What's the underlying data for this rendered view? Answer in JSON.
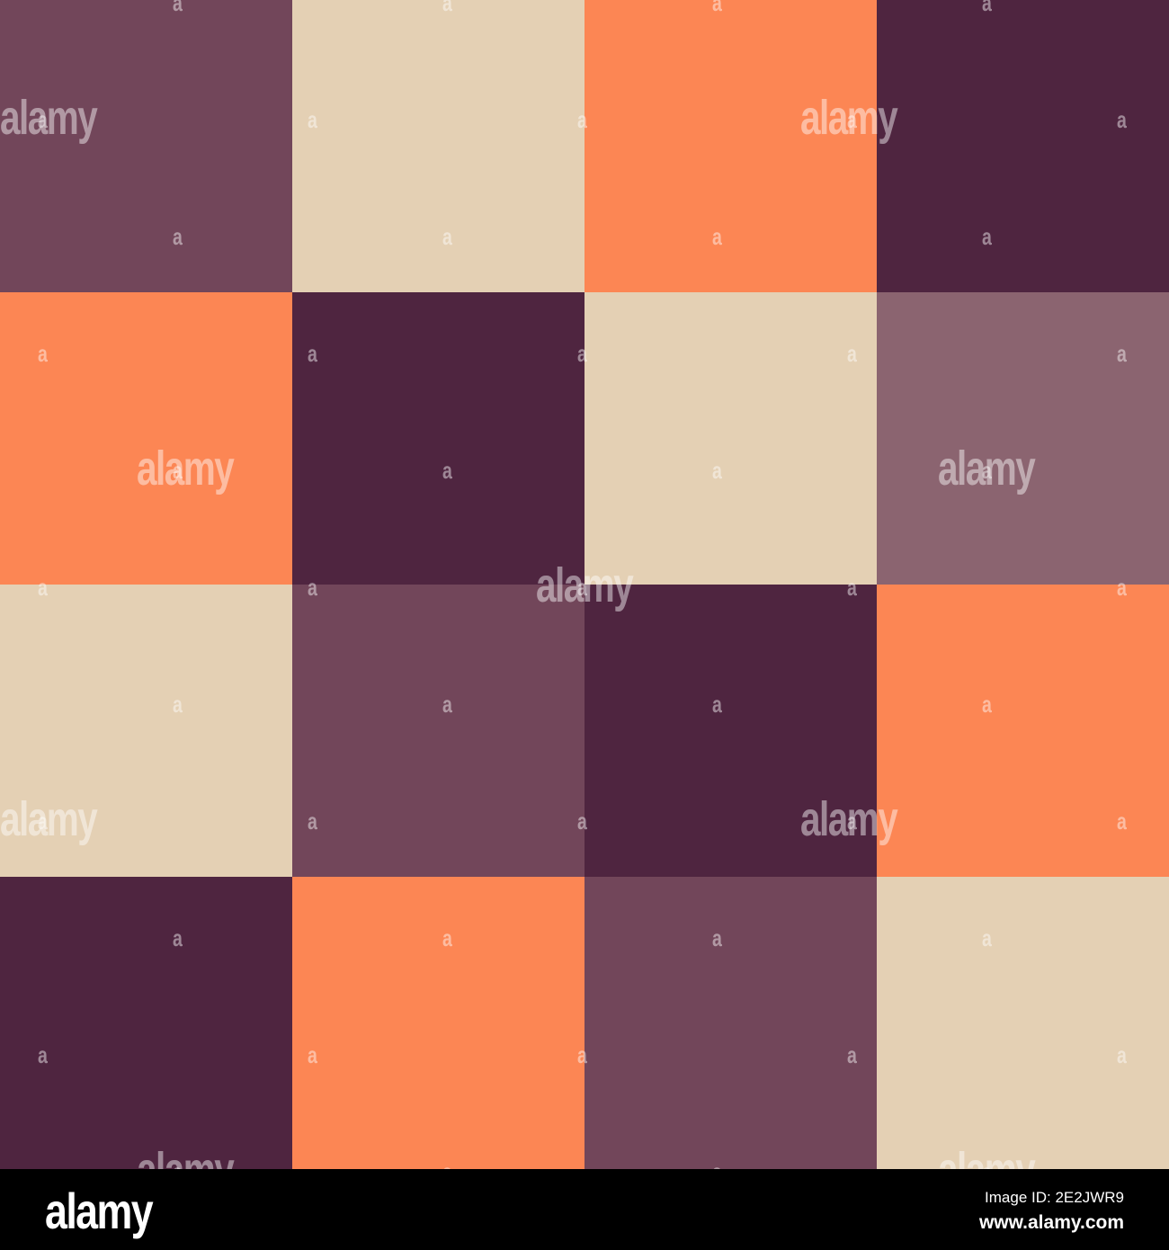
{
  "grid": {
    "colors": {
      "mauve": "#72465A",
      "beige": "#E4D0B4",
      "orange": "#FC8654",
      "plum": "#4F2540",
      "light_mauve": "#8B6470"
    },
    "rows": [
      [
        "mauve",
        "beige",
        "orange",
        "plum"
      ],
      [
        "orange",
        "plum",
        "beige",
        "light_mauve"
      ],
      [
        "beige",
        "mauve",
        "plum",
        "orange"
      ],
      [
        "plum",
        "orange",
        "mauve",
        "beige"
      ]
    ]
  },
  "watermark": {
    "text": "alamy",
    "mark": "a"
  },
  "footer": {
    "logo": "alamy",
    "image_id": "Image ID: 2E2JWR9",
    "website": "www.alamy.com"
  }
}
